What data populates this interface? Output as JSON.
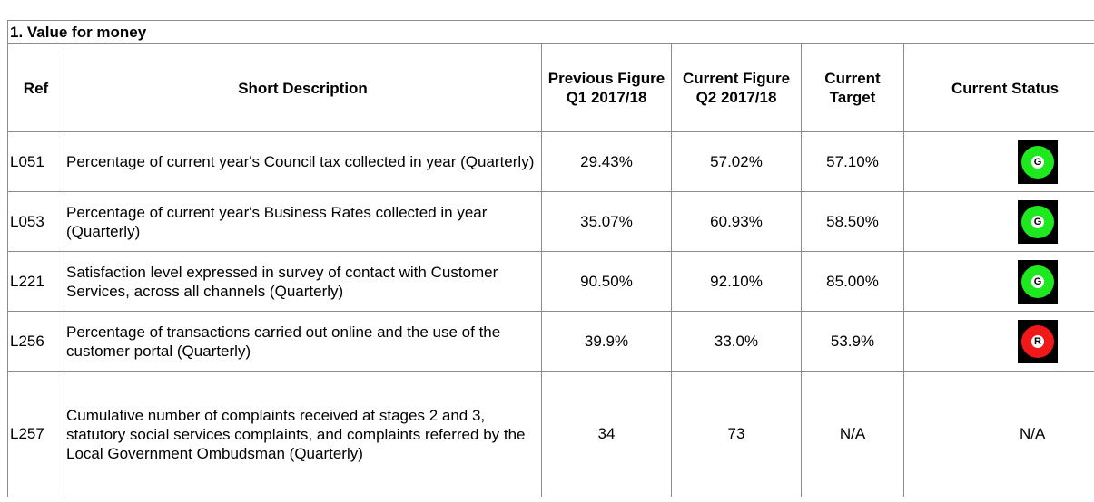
{
  "table": {
    "title": "1. Value for money",
    "headers": [
      "Ref",
      "Short Description",
      "Previous Figure Q1 2017/18",
      "Current Figure Q2 2017/18",
      "Current Target",
      "Current Status"
    ],
    "rows": [
      [
        "L051",
        "Percentage of current year's Council tax collected in year (Quarterly)",
        "29.43%",
        "57.02%",
        "57.10%",
        {
          "label": "G",
          "color": "#1ee81e"
        }
      ],
      [
        "L053",
        "Percentage of current year's Business Rates collected in year (Quarterly)",
        "35.07%",
        "60.93%",
        "58.50%",
        {
          "label": "G",
          "color": "#1ee81e"
        }
      ],
      [
        "L221",
        "Satisfaction level expressed in survey of contact with Customer Services, across all channels (Quarterly)",
        "90.50%",
        "92.10%",
        "85.00%",
        {
          "label": "G",
          "color": "#1ee81e"
        }
      ],
      [
        "L256",
        "Percentage of transactions carried out online and the use of the customer portal (Quarterly)",
        "39.9%",
        "33.0%",
        "53.9%",
        {
          "label": "R",
          "color": "#f01818"
        }
      ],
      [
        "L257",
        "Cumulative number of complaints received at stages 2 and 3, statutory social services complaints, and complaints referred by the Local Government Ombudsman (Quarterly)",
        "34",
        "73",
        "N/A",
        "N/A"
      ]
    ]
  }
}
